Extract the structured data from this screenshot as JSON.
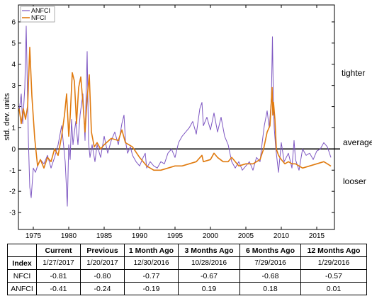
{
  "chart_data": {
    "type": "line",
    "ylabel": "std. dev. units",
    "xlim": [
      1972.9,
      2017.5
    ],
    "ylim": [
      -3.8,
      6.8
    ],
    "x_ticks": [
      1975,
      1980,
      1985,
      1990,
      1995,
      2000,
      2005,
      2010,
      2015
    ],
    "y_ticks": [
      -3,
      -2,
      -1,
      0,
      1,
      2,
      3,
      4,
      5,
      6
    ],
    "legend_position": "top-left",
    "side_annotations": {
      "tighter": "tighter",
      "average": "average",
      "looser": "looser"
    },
    "colors": {
      "ANFCI": "#7e57c2",
      "NFCI": "#e07b10",
      "reference": "#000000"
    },
    "series": [
      {
        "name": "ANFCI",
        "x": [
          1973.0,
          1973.3,
          1973.5,
          1973.8,
          1974.0,
          1974.3,
          1974.5,
          1974.7,
          1975.0,
          1975.3,
          1975.7,
          1976.0,
          1976.5,
          1977.0,
          1977.5,
          1978.0,
          1978.5,
          1979.0,
          1979.5,
          1979.8,
          1980.0,
          1980.2,
          1980.4,
          1980.6,
          1980.8,
          1981.0,
          1981.3,
          1981.6,
          1982.0,
          1982.3,
          1982.6,
          1982.8,
          1983.0,
          1983.3,
          1983.7,
          1984.0,
          1984.5,
          1985.0,
          1985.5,
          1986.0,
          1986.5,
          1987.0,
          1987.5,
          1987.8,
          1988.0,
          1988.3,
          1988.7,
          1989.0,
          1989.5,
          1990.0,
          1990.5,
          1990.8,
          1991.0,
          1991.5,
          1992.0,
          1992.5,
          1993.0,
          1993.5,
          1994.0,
          1994.5,
          1995.0,
          1995.5,
          1996.0,
          1996.5,
          1997.0,
          1997.5,
          1998.0,
          1998.5,
          1998.8,
          1999.0,
          1999.5,
          2000.0,
          2000.5,
          2001.0,
          2001.5,
          2002.0,
          2002.5,
          2003.0,
          2003.5,
          2004.0,
          2004.5,
          2005.0,
          2005.5,
          2006.0,
          2006.5,
          2007.0,
          2007.3,
          2007.6,
          2008.0,
          2008.3,
          2008.6,
          2008.75,
          2008.9,
          2009.0,
          2009.2,
          2009.4,
          2009.6,
          2010.0,
          2010.4,
          2011.0,
          2011.5,
          2011.8,
          2012.0,
          2012.5,
          2013.0,
          2013.5,
          2014.0,
          2014.5,
          2015.0,
          2015.5,
          2016.0,
          2016.5,
          2017.0
        ],
        "values": [
          1.8,
          2.6,
          1.2,
          2.9,
          5.8,
          0.5,
          -1.8,
          -2.3,
          -0.9,
          -1.1,
          -0.7,
          -0.5,
          -0.7,
          -0.3,
          -0.9,
          -0.4,
          0.2,
          1.1,
          -0.6,
          -2.7,
          0.2,
          -0.5,
          1.4,
          0.2,
          0.8,
          1.3,
          0.2,
          1.6,
          2.6,
          0.4,
          4.6,
          0.3,
          -0.4,
          0.2,
          -0.6,
          0.2,
          -0.4,
          0.6,
          -0.2,
          0.4,
          0.8,
          0.2,
          1.2,
          1.6,
          0.4,
          -0.2,
          0.1,
          -0.3,
          -0.6,
          -0.8,
          -0.4,
          -0.2,
          -0.9,
          -0.6,
          -0.8,
          -0.9,
          -0.6,
          -0.7,
          -0.2,
          0.0,
          -0.4,
          0.3,
          0.6,
          0.8,
          1.0,
          1.3,
          0.7,
          1.9,
          2.2,
          1.1,
          1.5,
          0.9,
          1.7,
          0.8,
          1.5,
          0.6,
          0.2,
          -0.6,
          -0.9,
          -0.6,
          -1.0,
          -0.8,
          -0.6,
          -1.0,
          -0.4,
          -0.6,
          0.3,
          1.1,
          1.8,
          1.0,
          2.4,
          5.3,
          1.9,
          1.0,
          0.1,
          -0.5,
          -1.1,
          0.3,
          -0.6,
          -0.2,
          -0.9,
          0.4,
          -0.5,
          -1.0,
          0.0,
          -0.3,
          -0.2,
          -0.5,
          -0.1,
          0.0,
          0.3,
          0.1,
          -0.4
        ]
      },
      {
        "name": "NFCI",
        "x": [
          1973.0,
          1973.3,
          1973.6,
          1973.9,
          1974.2,
          1974.5,
          1974.8,
          1975.2,
          1975.6,
          1976.0,
          1976.5,
          1977.0,
          1977.5,
          1978.0,
          1978.5,
          1979.0,
          1979.4,
          1979.7,
          1980.0,
          1980.2,
          1980.5,
          1980.8,
          1981.1,
          1981.4,
          1981.7,
          1982.0,
          1982.3,
          1982.6,
          1982.9,
          1983.2,
          1983.6,
          1984.0,
          1984.5,
          1985.0,
          1986.0,
          1987.0,
          1987.5,
          1988.0,
          1988.5,
          1989.0,
          1990.0,
          1990.5,
          1991.0,
          1992.0,
          1993.0,
          1994.0,
          1995.0,
          1996.0,
          1997.0,
          1998.0,
          1998.8,
          1999.0,
          2000.0,
          2000.5,
          2001.0,
          2001.8,
          2002.5,
          2003.0,
          2004.0,
          2005.0,
          2006.0,
          2007.0,
          2007.5,
          2008.0,
          2008.4,
          2008.7,
          2008.8,
          2008.9,
          2009.1,
          2009.3,
          2009.6,
          2010.0,
          2010.5,
          2011.0,
          2011.5,
          2012.0,
          2013.0,
          2014.0,
          2015.0,
          2016.0,
          2016.5,
          2017.0
        ],
        "values": [
          1.9,
          1.2,
          1.9,
          1.4,
          2.0,
          4.8,
          2.5,
          0.5,
          -0.8,
          -0.5,
          -0.9,
          -0.4,
          -0.6,
          0.0,
          -0.3,
          0.6,
          1.6,
          2.6,
          0.6,
          1.5,
          3.6,
          3.2,
          1.2,
          2.9,
          3.4,
          2.2,
          0.8,
          2.4,
          3.5,
          0.8,
          0.1,
          0.3,
          0.0,
          0.2,
          0.5,
          0.4,
          0.9,
          0.3,
          0.2,
          0.1,
          -0.4,
          -0.6,
          -0.8,
          -1.0,
          -1.0,
          -0.9,
          -0.8,
          -0.8,
          -0.7,
          -0.6,
          -0.3,
          -0.6,
          -0.5,
          -0.2,
          -0.4,
          -0.6,
          -0.6,
          -0.4,
          -0.8,
          -0.7,
          -0.7,
          -0.5,
          0.0,
          0.8,
          1.1,
          2.9,
          1.6,
          2.2,
          1.4,
          0.0,
          -0.3,
          -0.5,
          -0.7,
          -0.6,
          -0.7,
          -0.7,
          -0.9,
          -0.8,
          -0.7,
          -0.6,
          -0.7,
          -0.81
        ]
      }
    ]
  },
  "table": {
    "headers": [
      "",
      "Current",
      "Previous",
      "1 Month Ago",
      "3 Months Ago",
      "6 Months Ago",
      "12 Months Ago"
    ],
    "index_row": {
      "label": "Index",
      "dates": [
        "1/27/2017",
        "1/20/2017",
        "12/30/2016",
        "10/28/2016",
        "7/29/2016",
        "1/29/2016"
      ]
    },
    "rows": [
      {
        "label": "NFCI",
        "values": [
          "-0.81",
          "-0.80",
          "-0.77",
          "-0.67",
          "-0.68",
          "-0.57"
        ]
      },
      {
        "label": "ANFCI",
        "values": [
          "-0.41",
          "-0.24",
          "-0.19",
          "0.19",
          "0.18",
          "0.01"
        ]
      }
    ]
  }
}
